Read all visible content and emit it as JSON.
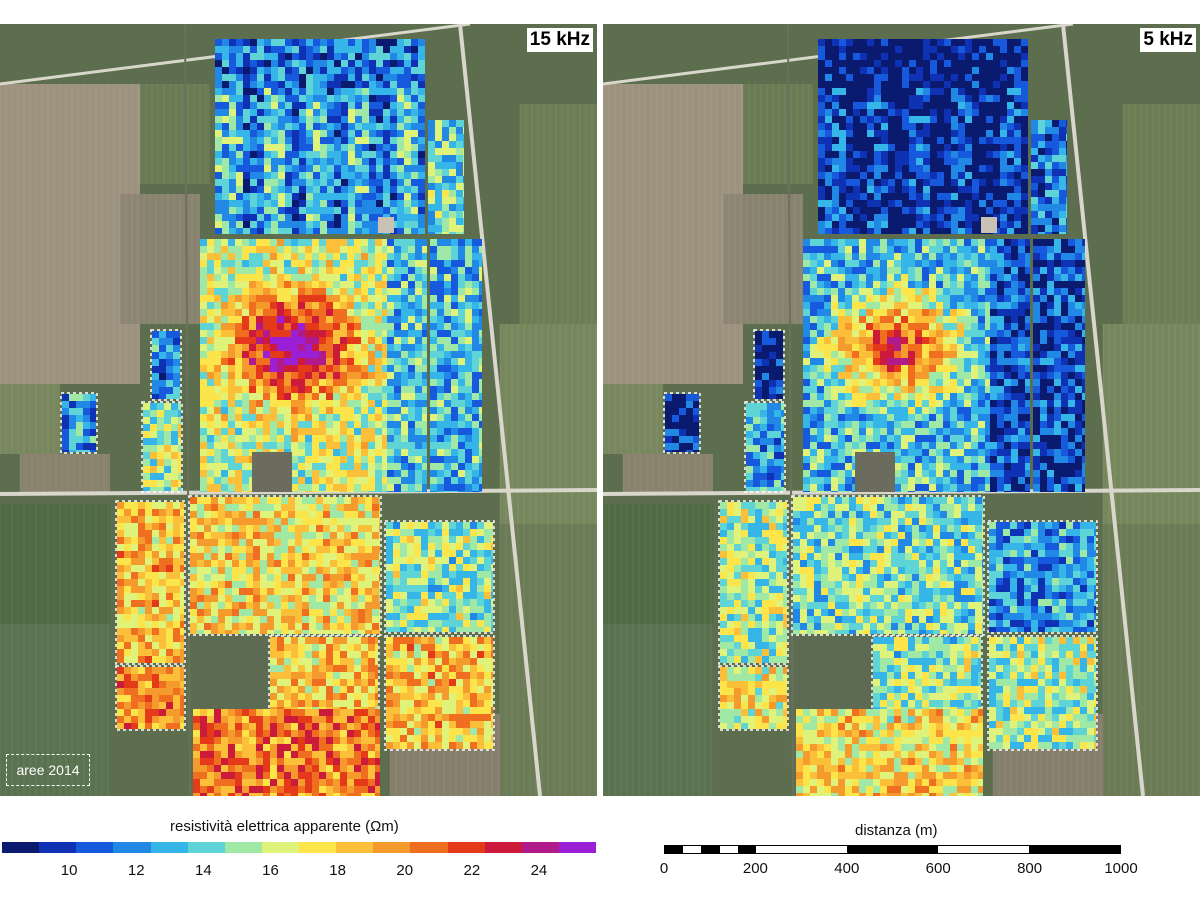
{
  "panels": [
    {
      "id": "left",
      "frequency_label": "15 kHz"
    },
    {
      "id": "right",
      "frequency_label": "5 kHz"
    }
  ],
  "area_label": "aree 2014",
  "colorbar": {
    "title": "resistività elettrica apparente (Ωm)",
    "ticks": [
      "10",
      "12",
      "14",
      "16",
      "18",
      "20",
      "22",
      "24"
    ],
    "range": [
      8,
      25.7
    ],
    "colormap": [
      "#0a1a6e",
      "#0f32b4",
      "#1759dc",
      "#2288e6",
      "#35b5e8",
      "#5fd4d6",
      "#9fe8a6",
      "#dff37a",
      "#fbe54a",
      "#fbbf3a",
      "#f59a2c",
      "#ef6e1f",
      "#e43a1a",
      "#cc1a3a",
      "#b01a8a",
      "#9b1fd6"
    ]
  },
  "scalebar": {
    "title": "distanza (m)",
    "ticks": [
      "0",
      "200",
      "400",
      "600",
      "800",
      "1000"
    ]
  },
  "colors": {
    "background_imagery": "#55674a",
    "survey_outline": "#ffffff",
    "road": "#d9d6cc"
  }
}
